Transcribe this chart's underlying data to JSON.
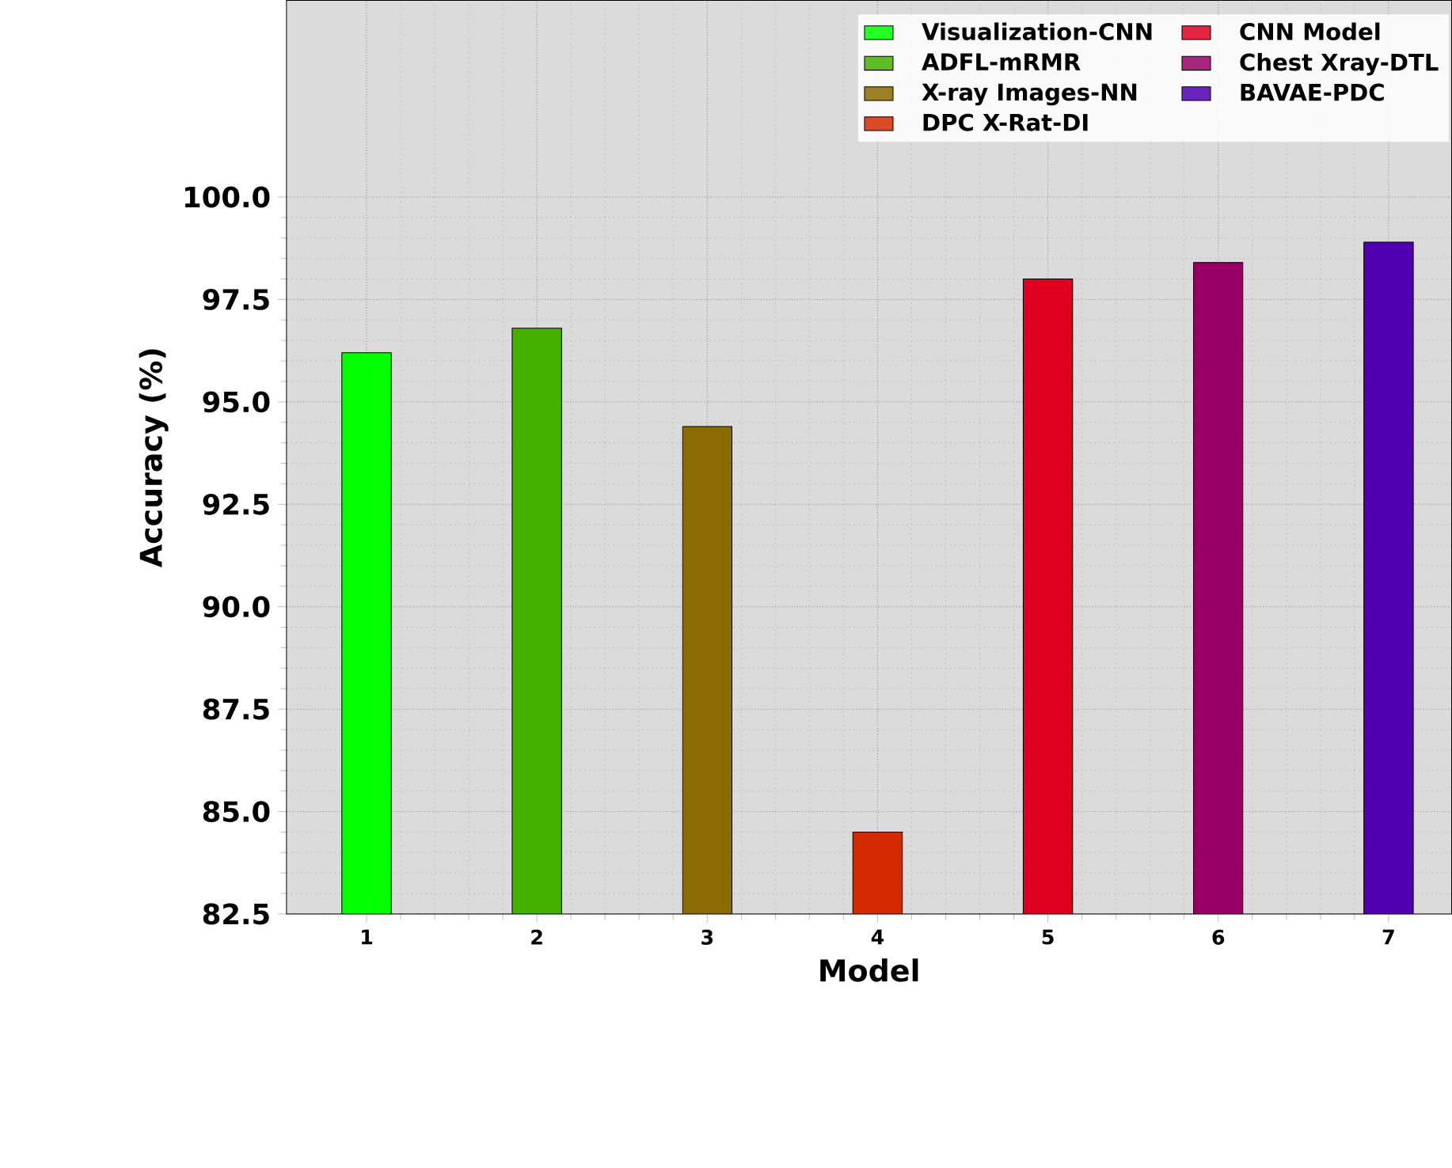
{
  "chart_data": {
    "type": "bar",
    "xlabel": "Model",
    "ylabel": "Accuracy (%)",
    "categories": [
      "1",
      "2",
      "3",
      "4",
      "5",
      "6",
      "7"
    ],
    "series": [
      {
        "name": "Visualization-CNN",
        "color": "#00ff00",
        "values": [
          96.2,
          null,
          null,
          null,
          null,
          null,
          null
        ]
      },
      {
        "name": "ADFL-mRMR",
        "color": "#44b000",
        "values": [
          null,
          96.8,
          null,
          null,
          null,
          null,
          null
        ]
      },
      {
        "name": "X-ray Images-NN",
        "color": "#8b6a00",
        "values": [
          null,
          null,
          94.4,
          null,
          null,
          null,
          null
        ]
      },
      {
        "name": "DPC X-Rat-DI",
        "color": "#d42a00",
        "values": [
          null,
          null,
          null,
          84.5,
          null,
          null,
          null
        ]
      },
      {
        "name": "CNN Model",
        "color": "#e0001e",
        "values": [
          null,
          null,
          null,
          null,
          98.0,
          null,
          null
        ]
      },
      {
        "name": "Chest  Xray-DTL",
        "color": "#990066",
        "values": [
          null,
          null,
          null,
          null,
          null,
          98.4,
          null
        ]
      },
      {
        "name": "BAVAE-PDC",
        "color": "#5000b0",
        "values": [
          null,
          null,
          null,
          null,
          null,
          null,
          98.9
        ]
      }
    ],
    "ylim": [
      82.5,
      104.8
    ],
    "yticks": [
      {
        "value": 82.5,
        "label": "82.5"
      },
      {
        "value": 85,
        "label": "85.0"
      },
      {
        "value": 87.5,
        "label": "87.5"
      },
      {
        "value": 90,
        "label": "90.0"
      },
      {
        "value": 92.5,
        "label": "92.5"
      },
      {
        "value": 95,
        "label": "95.0"
      },
      {
        "value": 97.5,
        "label": "97.5"
      },
      {
        "value": 100,
        "label": "100.0"
      }
    ],
    "grid": true,
    "legend": "top right"
  }
}
